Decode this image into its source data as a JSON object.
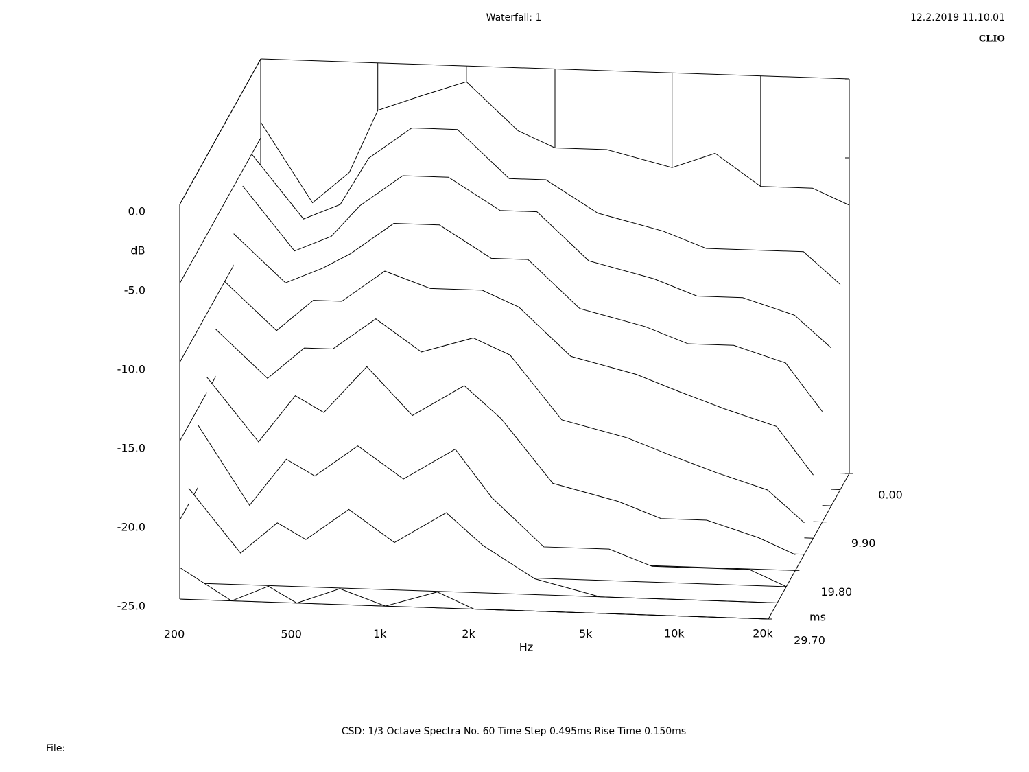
{
  "chart_data": {
    "type": "waterfall",
    "title": "Waterfall: 1",
    "timestamp": "12.2.2019 11.10.01",
    "brand": "CLIO",
    "footer": "CSD:   1/3 Octave   Spectra No. 60   Time Step 0.495ms   Rise Time 0.150ms",
    "file_label": "File:",
    "x_label": "Hz",
    "y_label": "dB",
    "z_label": "ms",
    "log_x": true,
    "xlim": [
      200,
      20000
    ],
    "xticks": [
      200,
      500,
      {
        "value": 1000,
        "label": "1k"
      },
      {
        "value": 2000,
        "label": "2k"
      },
      {
        "value": 5000,
        "label": "5k"
      },
      {
        "value": 10000,
        "label": "10k"
      },
      {
        "value": 20000,
        "label": "20k"
      }
    ],
    "ylim": [
      -25,
      0
    ],
    "yticks": [
      {
        "value": 0,
        "label": "0.0"
      },
      {
        "value": -5,
        "label": "-5.0"
      },
      {
        "value": -10,
        "label": "-10.0"
      },
      {
        "value": -15,
        "label": "-15.0"
      },
      {
        "value": -20,
        "label": "-20.0"
      },
      {
        "value": -25,
        "label": "-25.0"
      }
    ],
    "zlim": [
      0,
      29.7
    ],
    "zticks": [
      {
        "value": 0,
        "label": "0.00"
      },
      {
        "value": 9.9,
        "label": "9.90"
      },
      {
        "value": 19.8,
        "label": "19.80"
      },
      {
        "value": 29.7,
        "label": "29.70"
      }
    ],
    "x": [
      200,
      300,
      400,
      500,
      700,
      1000,
      1500,
      2000,
      3000,
      5000,
      7000,
      10000,
      15000,
      20000
    ],
    "slices": [
      {
        "t": 0,
        "values": [
          -4,
          -9,
          -7,
          -3,
          -2,
          -1,
          -4,
          -5,
          -5,
          -6,
          -5,
          -7,
          -7,
          -8
        ]
      },
      {
        "t": 3.3,
        "values": [
          -5,
          -9,
          -8,
          -5,
          -3,
          -3,
          -6,
          -6,
          -8,
          -9,
          -10,
          -10,
          -10,
          -12
        ]
      },
      {
        "t": 6.6,
        "values": [
          -6,
          -10,
          -9,
          -7,
          -5,
          -5,
          -7,
          -7,
          -10,
          -11,
          -12,
          -12,
          -13,
          -15
        ]
      },
      {
        "t": 9.9,
        "values": [
          -8,
          -11,
          -10,
          -9,
          -7,
          -7,
          -9,
          -9,
          -12,
          -13,
          -14,
          -14,
          -15,
          -18
        ]
      },
      {
        "t": 13.2,
        "values": [
          -10,
          -13,
          -11,
          -11,
          -9,
          -10,
          -10,
          -11,
          -14,
          -15,
          -16,
          -17,
          -18,
          -21
        ]
      },
      {
        "t": 16.5,
        "values": [
          -12,
          -15,
          -13,
          -13,
          -11,
          -13,
          -12,
          -13,
          -17,
          -18,
          -19,
          -20,
          -21,
          -23
        ]
      },
      {
        "t": 19.8,
        "values": [
          -14,
          -18,
          -15,
          -16,
          -13,
          -16,
          -14,
          -16,
          -20,
          -21,
          -22,
          -22,
          -23,
          -24
        ]
      },
      {
        "t": 23.1,
        "values": [
          -16,
          -21,
          -18,
          -19,
          -17,
          -19,
          -17,
          -20,
          -23,
          -23,
          -24,
          -24,
          -24,
          -25
        ]
      },
      {
        "t": 26.4,
        "values": [
          -19,
          -23,
          -21,
          -22,
          -20,
          -22,
          -20,
          -22,
          -24,
          -25,
          -25,
          -25,
          -25,
          -25
        ]
      },
      {
        "t": 29.7,
        "values": [
          -23,
          -25,
          -24,
          -25,
          -24,
          -25,
          -24,
          -25,
          -25,
          -25,
          -25,
          -25,
          -25,
          -25
        ]
      }
    ]
  }
}
